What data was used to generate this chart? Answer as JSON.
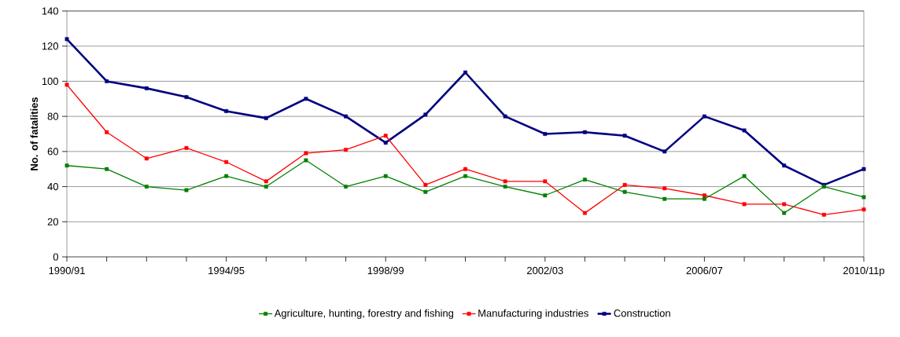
{
  "chart_data": {
    "type": "line",
    "ylabel": "No. of fatalities",
    "categories": [
      "1990/91",
      null,
      null,
      null,
      "1994/95",
      null,
      null,
      null,
      "1998/99",
      null,
      null,
      null,
      "2002/03",
      null,
      null,
      null,
      "2006/07",
      null,
      null,
      null,
      "2010/11p"
    ],
    "series": [
      {
        "name": "Agriculture, hunting, forestry and fishing",
        "color": "#008000",
        "values": [
          52,
          50,
          40,
          38,
          46,
          40,
          55,
          40,
          46,
          37,
          46,
          40,
          35,
          44,
          37,
          33,
          33,
          46,
          25,
          40,
          34
        ]
      },
      {
        "name": "Manufacturing industries",
        "color": "#ff0000",
        "values": [
          98,
          71,
          56,
          62,
          54,
          43,
          59,
          61,
          69,
          41,
          50,
          43,
          43,
          25,
          41,
          39,
          35,
          30,
          30,
          24,
          27
        ]
      },
      {
        "name": "Construction",
        "color": "#000080",
        "values": [
          124,
          100,
          96,
          91,
          83,
          79,
          90,
          80,
          65,
          81,
          105,
          80,
          70,
          71,
          69,
          60,
          80,
          72,
          52,
          41,
          50
        ]
      }
    ],
    "ylim": [
      0,
      140
    ],
    "yticks": [
      0,
      20,
      40,
      60,
      80,
      100,
      120,
      140
    ],
    "grid": "y",
    "legend": "bottom",
    "marker": "square",
    "line_style": "solid"
  }
}
